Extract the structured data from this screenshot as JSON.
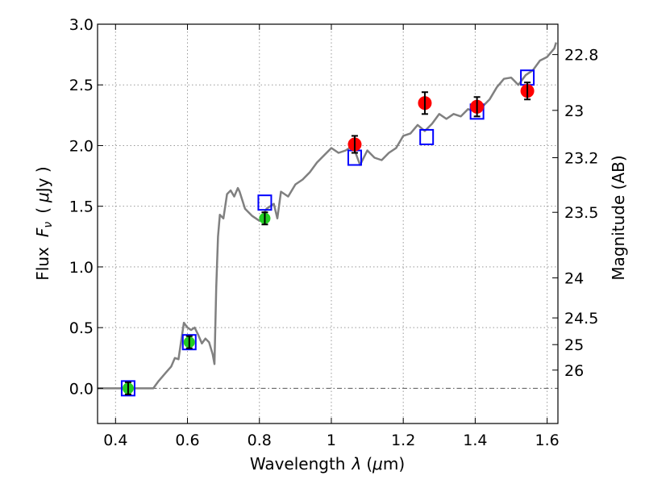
{
  "chart_data": {
    "type": "scatter",
    "xlabel_text": "Wavelength",
    "xlabel_symbol": "λ",
    "xlabel_unit_open": "(",
    "xlabel_unit_mu": "μ",
    "xlabel_unit_close": "m)",
    "ylabel_text": "Flux",
    "ylabel_symbol": "F",
    "ylabel_symbol_sub": "ν",
    "ylabel_unit_open": "(",
    "ylabel_unit_mu": "μ",
    "ylabel_unit_close": "Jy )",
    "y2label": "Magnitude (AB)",
    "xlim": [
      0.35,
      1.63
    ],
    "ylim": [
      -0.29,
      3.0
    ],
    "xticks": [
      0.4,
      0.6,
      0.8,
      1.0,
      1.2,
      1.4,
      1.6
    ],
    "xtick_labels": [
      "0.4",
      "0.6",
      "0.8",
      "1",
      "1.2",
      "1.4",
      "1.6"
    ],
    "yticks": [
      0.0,
      0.5,
      1.0,
      1.5,
      2.0,
      2.5,
      3.0
    ],
    "ytick_labels": [
      "0.0",
      "0.5",
      "1.0",
      "1.5",
      "2.0",
      "2.5",
      "3.0"
    ],
    "y2ticks": [
      {
        "label": "22.8",
        "flux": 2.75
      },
      {
        "label": "23",
        "flux": 2.29
      },
      {
        "label": "23.2",
        "flux": 1.9
      },
      {
        "label": "23.5",
        "flux": 1.45
      },
      {
        "label": "24",
        "flux": 0.91
      },
      {
        "label": "24.5",
        "flux": 0.58
      },
      {
        "label": "25",
        "flux": 0.36
      },
      {
        "label": "26",
        "flux": 0.15
      }
    ],
    "grid": true,
    "zero_line": true,
    "colors": {
      "model_spectrum": "#808080",
      "optical_points": "#22cc22",
      "nir_points": "#ff0000",
      "model_photometry": "#0000ff",
      "errorbar": "#000000"
    },
    "series": [
      {
        "kind": "line",
        "x": [
          0.35,
          0.505,
          0.52,
          0.54,
          0.555,
          0.565,
          0.575,
          0.58,
          0.59,
          0.6,
          0.61,
          0.62,
          0.63,
          0.64,
          0.65,
          0.66,
          0.67,
          0.675,
          0.68,
          0.685,
          0.69,
          0.7,
          0.71,
          0.72,
          0.73,
          0.74,
          0.745,
          0.76,
          0.78,
          0.8,
          0.82,
          0.84,
          0.85,
          0.86,
          0.88,
          0.9,
          0.92,
          0.94,
          0.96,
          0.98,
          1.0,
          1.02,
          1.04,
          1.06,
          1.08,
          1.1,
          1.12,
          1.14,
          1.16,
          1.18,
          1.2,
          1.22,
          1.24,
          1.26,
          1.28,
          1.3,
          1.32,
          1.34,
          1.36,
          1.38,
          1.4,
          1.42,
          1.44,
          1.46,
          1.48,
          1.5,
          1.52,
          1.54,
          1.56,
          1.58,
          1.6,
          1.62,
          1.625
        ],
        "y": [
          0.0,
          0.0,
          0.06,
          0.13,
          0.18,
          0.25,
          0.24,
          0.34,
          0.54,
          0.5,
          0.48,
          0.5,
          0.44,
          0.37,
          0.41,
          0.38,
          0.28,
          0.2,
          0.83,
          1.25,
          1.43,
          1.4,
          1.6,
          1.63,
          1.58,
          1.65,
          1.62,
          1.48,
          1.42,
          1.38,
          1.48,
          1.52,
          1.4,
          1.62,
          1.58,
          1.68,
          1.72,
          1.78,
          1.86,
          1.92,
          1.98,
          1.94,
          1.96,
          2.0,
          1.84,
          1.96,
          1.9,
          1.88,
          1.94,
          1.98,
          2.08,
          2.1,
          2.17,
          2.12,
          2.18,
          2.26,
          2.22,
          2.26,
          2.24,
          2.3,
          2.28,
          2.32,
          2.38,
          2.48,
          2.55,
          2.56,
          2.5,
          2.58,
          2.62,
          2.7,
          2.73,
          2.8,
          2.85
        ]
      },
      {
        "kind": "model_photometry",
        "x": [
          0.435,
          0.605,
          0.815,
          1.065,
          1.265,
          1.405,
          1.545
        ],
        "y": [
          0.0,
          0.38,
          1.53,
          1.9,
          2.07,
          2.28,
          2.56
        ]
      },
      {
        "kind": "optical_observed",
        "x": [
          0.435,
          0.605,
          0.815
        ],
        "y": [
          0.0,
          0.38,
          1.4
        ],
        "err": [
          0.05,
          0.05,
          0.05
        ]
      },
      {
        "kind": "nir_observed",
        "x": [
          1.065,
          1.26,
          1.405,
          1.545
        ],
        "y": [
          2.01,
          2.35,
          2.32,
          2.45
        ],
        "err": [
          0.07,
          0.09,
          0.08,
          0.07
        ]
      }
    ]
  }
}
